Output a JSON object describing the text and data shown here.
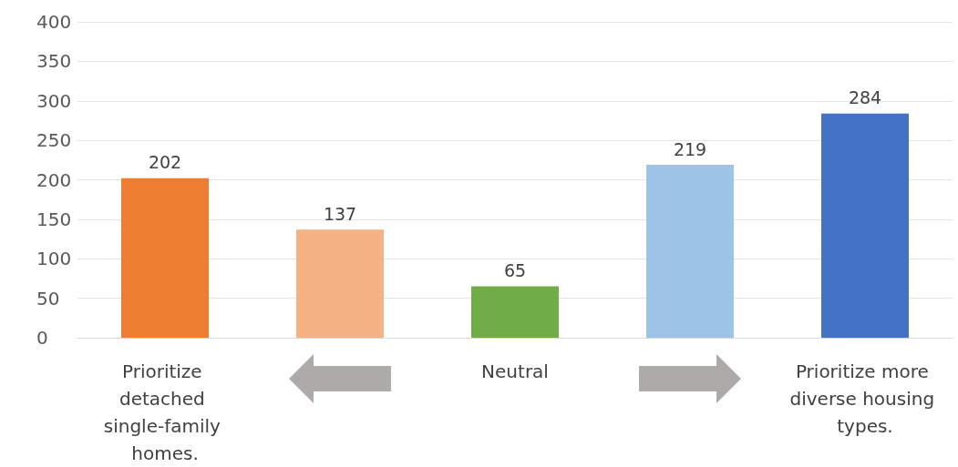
{
  "chart_data": {
    "type": "bar",
    "categories": [
      "Prioritize detached single-family homes.",
      null,
      "Neutral",
      null,
      "Prioritize more diverse housing types."
    ],
    "values": [
      202,
      137,
      65,
      219,
      284
    ],
    "colors": [
      "#ed7d31",
      "#f4b183",
      "#70ad47",
      "#9dc3e6",
      "#4472c4"
    ],
    "ylim": [
      0,
      400
    ],
    "yticks": [
      0,
      50,
      100,
      150,
      200,
      250,
      300,
      350,
      400
    ],
    "grid": "y",
    "data_labels": true
  }
}
